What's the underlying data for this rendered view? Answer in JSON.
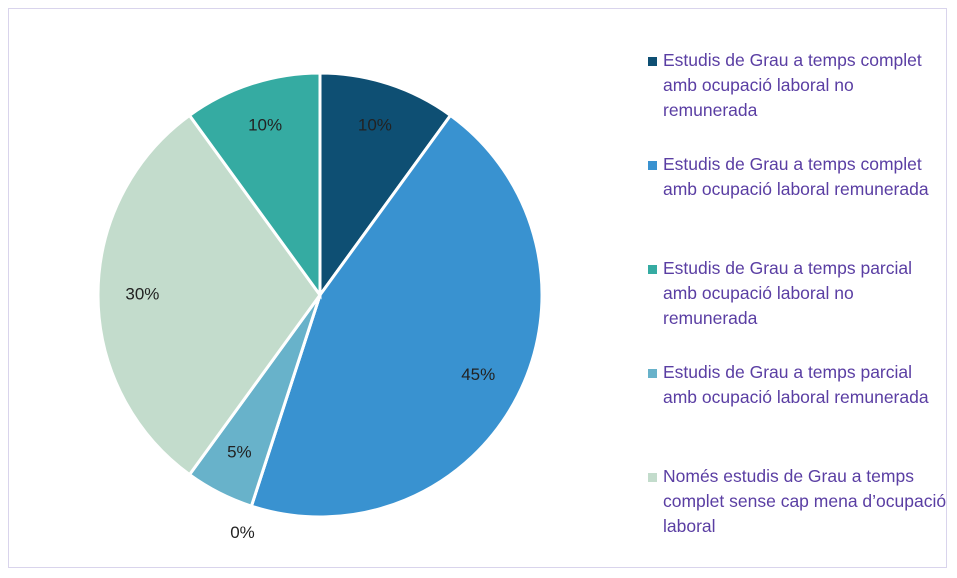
{
  "chart_data": {
    "type": "pie",
    "categories": [
      "Estudis de Grau a temps complet amb ocupació laboral no remunerada",
      "Estudis de Grau a temps complet amb ocupació laboral remunerada",
      "Estudis de Grau a temps parcial amb ocupació laboral no remunerada",
      "Estudis de Grau a temps parcial amb ocupació laboral remunerada",
      "Només estudis de Grau a temps complet sense cap mena d’ocupació laboral",
      null
    ],
    "values": [
      10,
      45,
      0,
      5,
      30,
      10
    ],
    "value_labels": [
      "10%",
      "45%",
      "0%",
      "5%",
      "30%",
      "10%"
    ],
    "colors": [
      "#0e4f73",
      "#3992d0",
      "#35aba2",
      "#68b2ca",
      "#c3dccc",
      "#35aba2"
    ],
    "legend": "right"
  }
}
